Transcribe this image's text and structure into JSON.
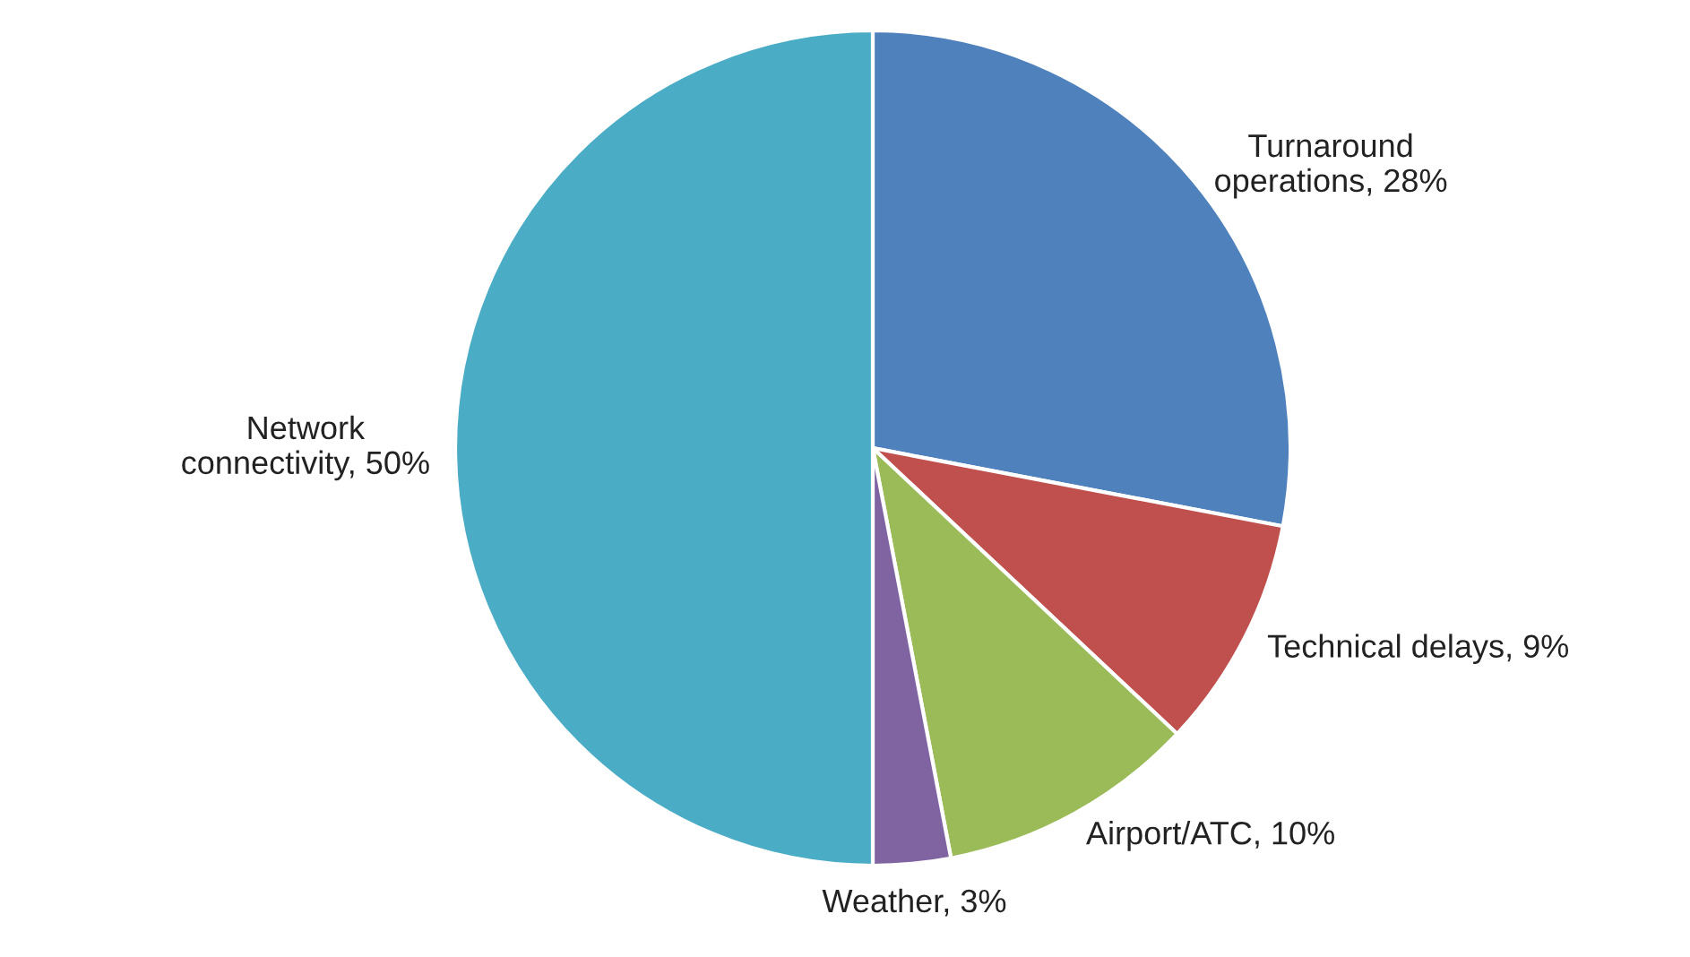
{
  "chart_data": {
    "type": "pie",
    "categories": [
      "Turnaround\noperations",
      "Technical delays",
      "Airport/ATC",
      "Weather",
      "Network\nconnectivity"
    ],
    "values": [
      28,
      9,
      10,
      3,
      50
    ],
    "value_labels": [
      "28%",
      "9%",
      "10%",
      "3%",
      "50%"
    ],
    "colors": [
      "#4f81bd",
      "#c0504d",
      "#9bbb59",
      "#8064a2",
      "#4bacc6"
    ]
  }
}
